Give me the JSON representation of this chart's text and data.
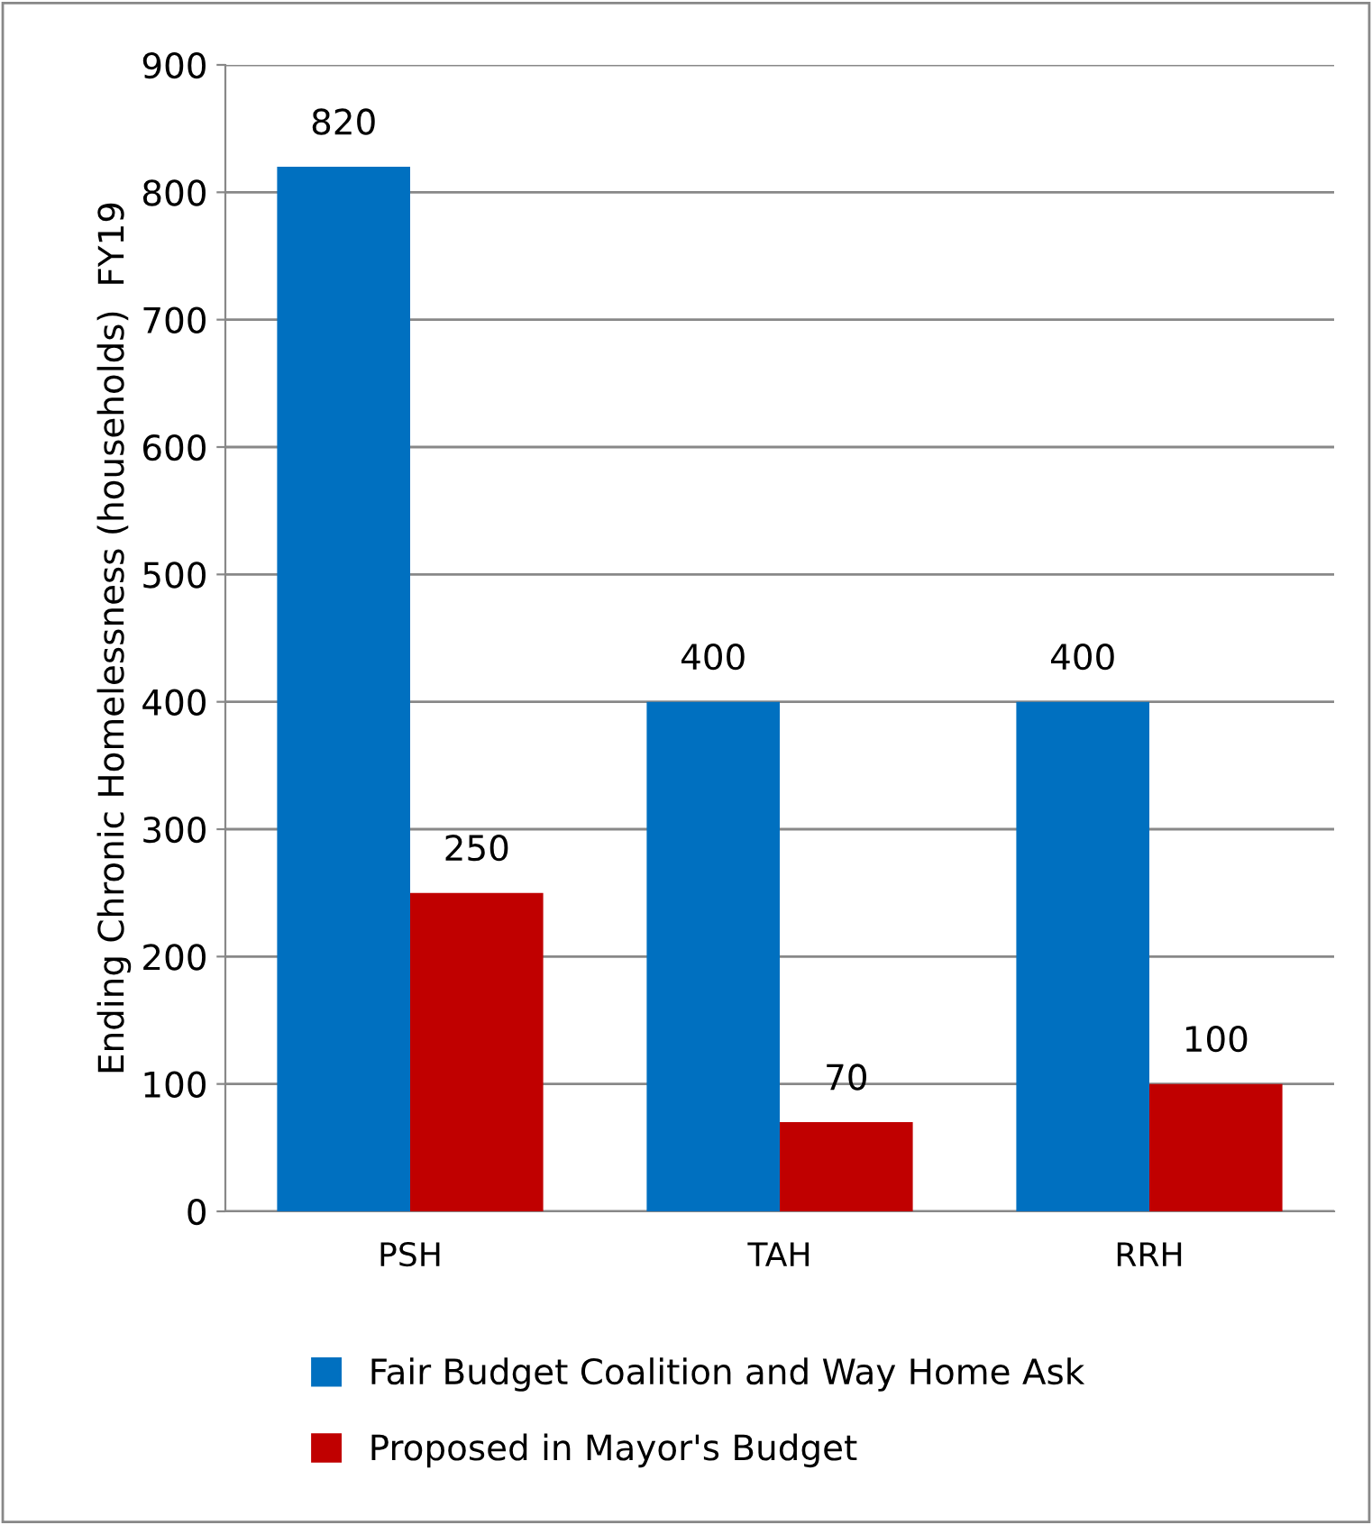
{
  "chart_data": {
    "type": "bar",
    "ylabel": "Ending Chronic Homelessness (households)  FY19",
    "categories": [
      "PSH",
      "TAH",
      "RRH"
    ],
    "series": [
      {
        "name": "Fair Budget Coalition and Way Home Ask",
        "color": "#0070c0",
        "values": [
          820,
          400,
          400
        ]
      },
      {
        "name": "Proposed in Mayor's Budget",
        "color": "#c00000",
        "values": [
          250,
          70,
          100
        ]
      }
    ],
    "ylim": [
      0,
      900
    ],
    "yticks": [
      0,
      100,
      200,
      300,
      400,
      500,
      600,
      700,
      800,
      900
    ],
    "grid": "y",
    "legend": "bottom",
    "data_labels": true
  }
}
